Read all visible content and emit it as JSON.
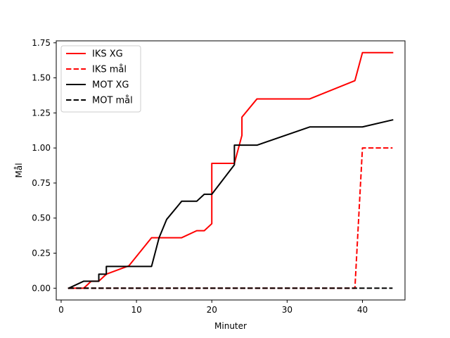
{
  "chart_data": {
    "type": "line",
    "xlabel": "Minuter",
    "ylabel": "Mål",
    "xlim": [
      -0.65,
      45.65
    ],
    "ylim": [
      -0.084,
      1.764
    ],
    "xticks": [
      0,
      10,
      20,
      30,
      40
    ],
    "yticks": [
      0.0,
      0.25,
      0.5,
      0.75,
      1.0,
      1.25,
      1.5,
      1.75
    ],
    "ytick_labels": [
      "0.00",
      "0.25",
      "0.50",
      "0.75",
      "1.00",
      "1.25",
      "1.50",
      "1.75"
    ],
    "grid": false,
    "legend": "upper-left",
    "series": [
      {
        "name": "IKS XG",
        "color": "#ff0000",
        "style": "solid",
        "points": [
          [
            1,
            0
          ],
          [
            3,
            0
          ],
          [
            4,
            0.05
          ],
          [
            5,
            0.05
          ],
          [
            6,
            0.1
          ],
          [
            9,
            0.16
          ],
          [
            12,
            0.36
          ],
          [
            16,
            0.36
          ],
          [
            18,
            0.41
          ],
          [
            19,
            0.41
          ],
          [
            20,
            0.46
          ],
          [
            20,
            0.89
          ],
          [
            23,
            0.89
          ],
          [
            24,
            1.09
          ],
          [
            24,
            1.22
          ],
          [
            26,
            1.35
          ],
          [
            33,
            1.35
          ],
          [
            39,
            1.48
          ],
          [
            40,
            1.68
          ],
          [
            44,
            1.68
          ]
        ]
      },
      {
        "name": "IKS mål",
        "color": "#ff0000",
        "style": "dashed",
        "points": [
          [
            1,
            0
          ],
          [
            39,
            0
          ],
          [
            40,
            1.0
          ],
          [
            44,
            1.0
          ]
        ]
      },
      {
        "name": "MOT XG",
        "color": "#000000",
        "style": "solid",
        "points": [
          [
            1,
            0
          ],
          [
            3,
            0.05
          ],
          [
            5,
            0.05
          ],
          [
            5,
            0.1
          ],
          [
            6,
            0.1
          ],
          [
            6,
            0.155
          ],
          [
            12,
            0.155
          ],
          [
            13,
            0.36
          ],
          [
            14,
            0.49
          ],
          [
            16,
            0.62
          ],
          [
            18,
            0.62
          ],
          [
            19,
            0.67
          ],
          [
            20,
            0.67
          ],
          [
            23,
            0.88
          ],
          [
            23,
            1.02
          ],
          [
            26,
            1.02
          ],
          [
            33,
            1.15
          ],
          [
            40,
            1.15
          ],
          [
            44,
            1.2
          ]
        ]
      },
      {
        "name": "MOT mål",
        "color": "#000000",
        "style": "dashed",
        "points": [
          [
            1,
            0
          ],
          [
            44,
            0
          ]
        ]
      }
    ]
  }
}
